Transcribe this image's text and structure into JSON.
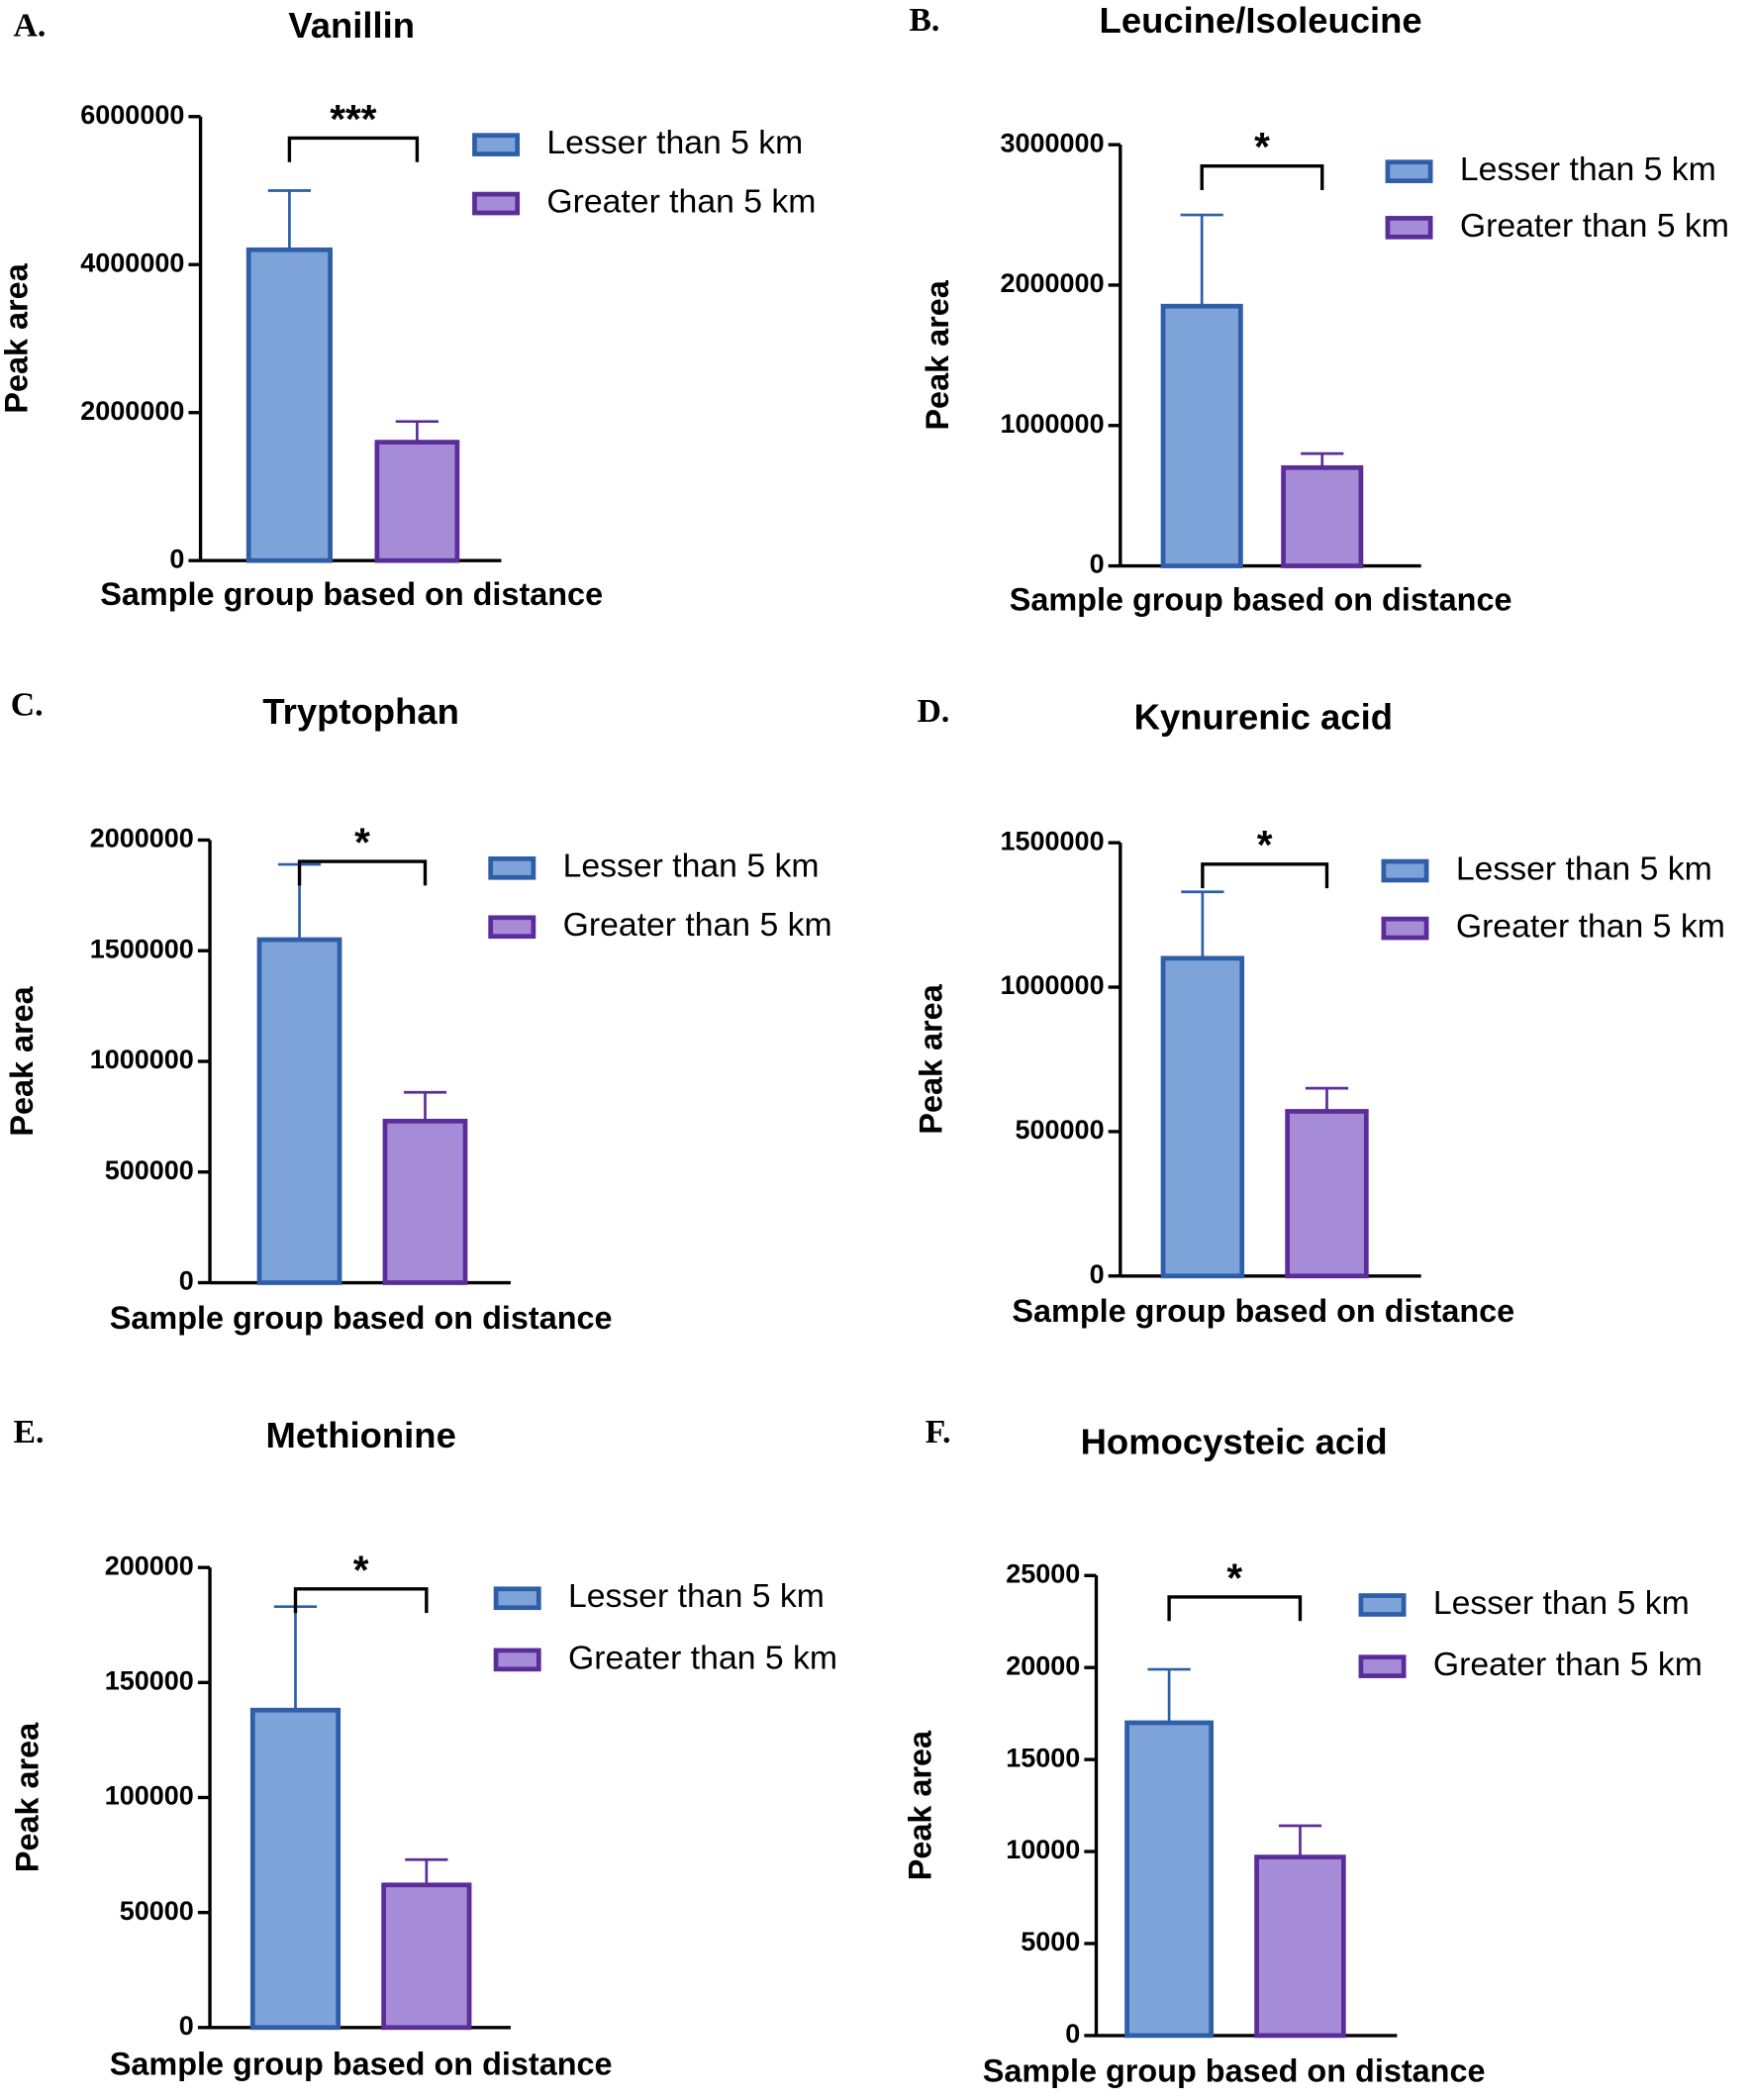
{
  "chart_data": [
    {
      "type": "bar",
      "panel": "A.",
      "title": "Vanillin",
      "x_label": "Sample group based on distance",
      "y_label": "Peak area",
      "annotation": "***",
      "series": [
        {
          "name": "Lesser than 5 km",
          "color": "#7da3d8",
          "edgecolor": "#2e5ea8",
          "values": [
            4200000
          ],
          "errors": [
            800000
          ]
        },
        {
          "name": "Greater than 5 km",
          "color": "#a68bd6",
          "edgecolor": "#5b2d9a",
          "values": [
            1600000
          ],
          "errors": [
            280000
          ]
        }
      ],
      "ylim": [
        0,
        6000000
      ],
      "yticks": [
        0,
        2000000,
        4000000,
        6000000
      ]
    },
    {
      "type": "bar",
      "panel": "B.",
      "title": "Leucine/Isoleucine",
      "x_label": "Sample group based on distance",
      "y_label": "Peak area",
      "annotation": "*",
      "series": [
        {
          "name": "Lesser than 5 km",
          "color": "#7da3d8",
          "edgecolor": "#2e5ea8",
          "values": [
            1850000
          ],
          "errors": [
            650000
          ]
        },
        {
          "name": "Greater than 5 km",
          "color": "#a68bd6",
          "edgecolor": "#5b2d9a",
          "values": [
            700000
          ],
          "errors": [
            100000
          ]
        }
      ],
      "ylim": [
        0,
        3000000
      ],
      "yticks": [
        0,
        1000000,
        2000000,
        3000000
      ]
    },
    {
      "type": "bar",
      "panel": "C.",
      "title": "Tryptophan",
      "x_label": "Sample group based on distance",
      "y_label": "Peak area",
      "annotation": "*",
      "series": [
        {
          "name": "Lesser than 5 km",
          "color": "#7da3d8",
          "edgecolor": "#2e5ea8",
          "values": [
            1550000
          ],
          "errors": [
            340000
          ]
        },
        {
          "name": "Greater than 5 km",
          "color": "#a68bd6",
          "edgecolor": "#5b2d9a",
          "values": [
            730000
          ],
          "errors": [
            130000
          ]
        }
      ],
      "ylim": [
        0,
        2000000
      ],
      "yticks": [
        0,
        500000,
        1000000,
        1500000,
        2000000
      ]
    },
    {
      "type": "bar",
      "panel": "D.",
      "title": "Kynurenic acid",
      "x_label": "Sample group based on distance",
      "y_label": "Peak area",
      "annotation": "*",
      "series": [
        {
          "name": "Lesser than 5 km",
          "color": "#7da3d8",
          "edgecolor": "#2e5ea8",
          "values": [
            1100000
          ],
          "errors": [
            230000
          ]
        },
        {
          "name": "Greater than 5 km",
          "color": "#a68bd6",
          "edgecolor": "#5b2d9a",
          "values": [
            570000
          ],
          "errors": [
            80000
          ]
        }
      ],
      "ylim": [
        0,
        1500000
      ],
      "yticks": [
        0,
        500000,
        1000000,
        1500000
      ]
    },
    {
      "type": "bar",
      "panel": "E.",
      "title": "Methionine",
      "x_label": "Sample group based on distance",
      "y_label": "Peak area",
      "annotation": "*",
      "series": [
        {
          "name": "Lesser than 5 km",
          "color": "#7da3d8",
          "edgecolor": "#2e5ea8",
          "values": [
            138000
          ],
          "errors": [
            45000
          ]
        },
        {
          "name": "Greater than 5 km",
          "color": "#a68bd6",
          "edgecolor": "#5b2d9a",
          "values": [
            62000
          ],
          "errors": [
            11000
          ]
        }
      ],
      "ylim": [
        0,
        200000
      ],
      "yticks": [
        0,
        50000,
        100000,
        150000,
        200000
      ]
    },
    {
      "type": "bar",
      "panel": "F.",
      "title": "Homocysteic acid",
      "x_label": "Sample group based on distance",
      "y_label": "Peak area",
      "annotation": "*",
      "series": [
        {
          "name": "Lesser than 5 km",
          "color": "#7da3d8",
          "edgecolor": "#2e5ea8",
          "values": [
            17000
          ],
          "errors": [
            2900
          ]
        },
        {
          "name": "Greater than 5 km",
          "color": "#a68bd6",
          "edgecolor": "#5b2d9a",
          "values": [
            9700
          ],
          "errors": [
            1700
          ]
        }
      ],
      "ylim": [
        0,
        25000
      ],
      "yticks": [
        0,
        5000,
        10000,
        15000,
        20000,
        25000
      ]
    }
  ]
}
